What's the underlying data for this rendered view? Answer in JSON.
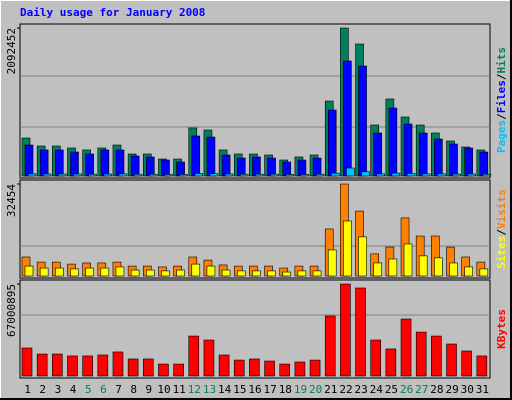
{
  "title": "Daily usage for January 2008",
  "categories": [
    1,
    2,
    3,
    4,
    5,
    6,
    7,
    8,
    9,
    10,
    11,
    12,
    13,
    14,
    15,
    16,
    17,
    18,
    19,
    20,
    21,
    22,
    23,
    24,
    25,
    26,
    27,
    28,
    29,
    30,
    31
  ],
  "category_colors": [
    "#000000",
    "#000000",
    "#000000",
    "#000000",
    "#00805c",
    "#00805c",
    "#000000",
    "#000000",
    "#000000",
    "#000000",
    "#000000",
    "#00805c",
    "#00805c",
    "#000000",
    "#000000",
    "#000000",
    "#000000",
    "#000000",
    "#00805c",
    "#00805c",
    "#000000",
    "#000000",
    "#000000",
    "#000000",
    "#000000",
    "#00805c",
    "#00805c",
    "#000000",
    "#000000",
    "#000000",
    "#000000"
  ],
  "legend_separator": "/",
  "chart_data": [
    {
      "type": "bar",
      "ylim": [
        0,
        2092452
      ],
      "yticks": [
        2092452
      ],
      "series": [
        {
          "name": "Hits",
          "color": "#00805c",
          "values": [
            537000,
            424000,
            424000,
            396000,
            368000,
            396000,
            438000,
            311000,
            311000,
            240000,
            240000,
            679000,
            650000,
            368000,
            311000,
            311000,
            297000,
            226000,
            269000,
            297000,
            1060000,
            2092452,
            1866000,
            721000,
            1089000,
            834000,
            721000,
            608000,
            495000,
            410000,
            368000
          ]
        },
        {
          "name": "Files",
          "color": "#0000ff",
          "values": [
            438000,
            368000,
            368000,
            339000,
            311000,
            368000,
            368000,
            283000,
            269000,
            226000,
            198000,
            566000,
            551000,
            297000,
            254000,
            269000,
            254000,
            198000,
            226000,
            254000,
            933000,
            1626000,
            1555000,
            608000,
            961000,
            735000,
            608000,
            523000,
            452000,
            396000,
            339000
          ]
        },
        {
          "name": "Pages",
          "color": "#00c0ff",
          "values": [
            30000,
            28000,
            28000,
            28000,
            25000,
            28000,
            30000,
            25000,
            25000,
            22000,
            22000,
            35000,
            33000,
            28000,
            25000,
            25000,
            25000,
            22000,
            22000,
            25000,
            40000,
            113000,
            60000,
            30000,
            40000,
            35000,
            30000,
            30000,
            28000,
            28000,
            25000
          ]
        }
      ]
    },
    {
      "type": "bar",
      "ylim": [
        0,
        32454
      ],
      "yticks": [
        32454
      ],
      "series": [
        {
          "name": "Visits",
          "color": "#ff8000",
          "values": [
            6700,
            4900,
            4900,
            4200,
            4600,
            4600,
            4900,
            3500,
            3500,
            3200,
            3500,
            6700,
            5600,
            3900,
            3500,
            3500,
            3500,
            2800,
            3500,
            3500,
            16600,
            32454,
            22900,
            7800,
            10200,
            20500,
            14100,
            14100,
            10200,
            6700,
            4900
          ]
        },
        {
          "name": "Sites",
          "color": "#ffff00",
          "values": [
            3500,
            2800,
            2800,
            2500,
            2800,
            2800,
            3200,
            2100,
            2100,
            1800,
            2100,
            4200,
            3500,
            2100,
            1800,
            1800,
            1800,
            1400,
            1800,
            1800,
            9200,
            19400,
            13800,
            4600,
            6000,
            11300,
            7100,
            6400,
            4600,
            3200,
            2500
          ]
        }
      ]
    },
    {
      "type": "bar",
      "ylim": [
        0,
        67000895
      ],
      "yticks": [
        67000895
      ],
      "series": [
        {
          "name": "KBytes",
          "color": "#ff0000",
          "values": [
            20400000,
            16000000,
            16000000,
            14600000,
            14600000,
            15300000,
            17500000,
            12400000,
            12400000,
            8700000,
            8700000,
            29100000,
            26200000,
            15300000,
            11600000,
            12400000,
            10900000,
            8700000,
            10200000,
            11600000,
            43700000,
            67000895,
            64100000,
            26200000,
            19700000,
            41500000,
            32000000,
            29100000,
            23300000,
            18200000,
            14600000
          ]
        }
      ]
    }
  ]
}
